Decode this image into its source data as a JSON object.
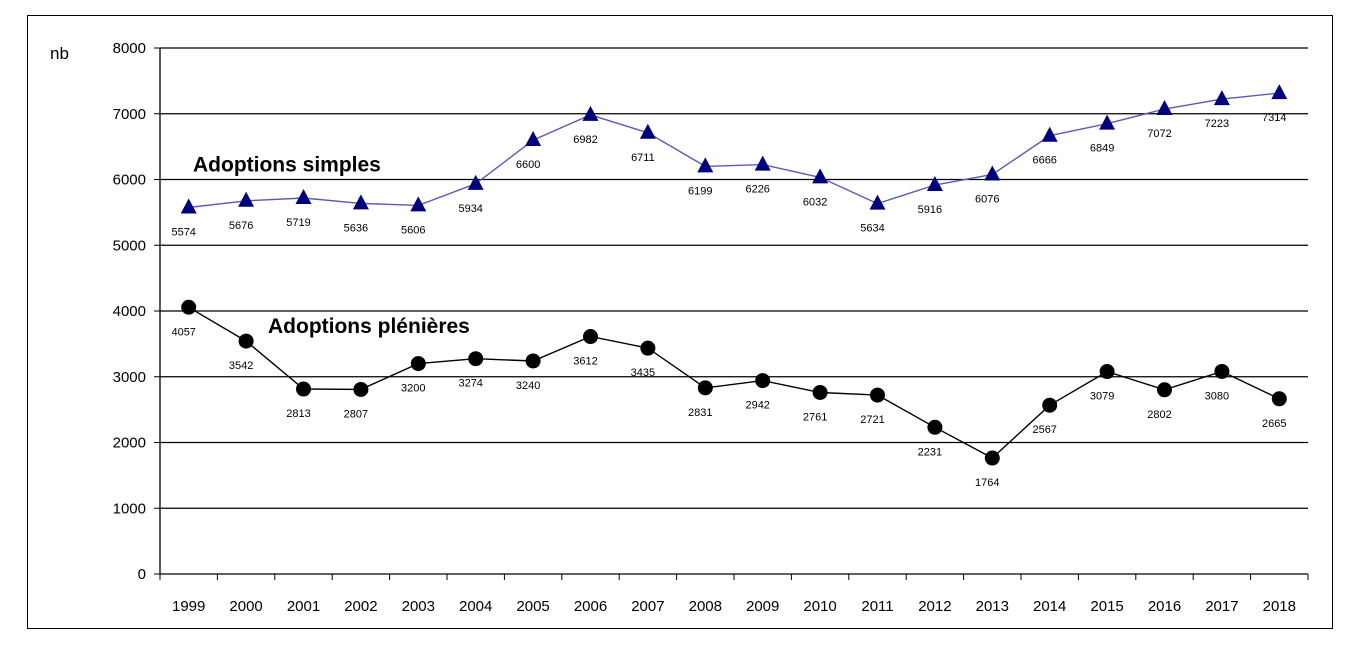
{
  "chart_data": {
    "type": "line",
    "ylabel": "nb",
    "ylim": [
      0,
      8000
    ],
    "yticks": [
      0,
      1000,
      2000,
      3000,
      4000,
      5000,
      6000,
      7000,
      8000
    ],
    "grid": "horizontal",
    "legend": "inline labels",
    "categories": [
      "1999",
      "2000",
      "2001",
      "2002",
      "2003",
      "2004",
      "2005",
      "2006",
      "2007",
      "2008",
      "2009",
      "2010",
      "2011",
      "2012",
      "2013",
      "2014",
      "2015",
      "2016",
      "2017",
      "2018"
    ],
    "series": [
      {
        "name": "Adoptions simples",
        "marker": "triangle",
        "color": "#00007a",
        "line_color": "#5a5ab4",
        "values": [
          5574,
          5676,
          5719,
          5636,
          5606,
          5934,
          6600,
          6982,
          6711,
          6199,
          6226,
          6032,
          5634,
          5916,
          6076,
          6666,
          6849,
          7072,
          7223,
          7314
        ]
      },
      {
        "name": "Adoptions plénières",
        "marker": "circle",
        "color": "#000000",
        "line_color": "#000000",
        "values": [
          4057,
          3542,
          2813,
          2807,
          3200,
          3274,
          3240,
          3612,
          3435,
          2831,
          2942,
          2761,
          2721,
          2231,
          1764,
          2567,
          3079,
          2802,
          3080,
          2665
        ]
      }
    ]
  }
}
